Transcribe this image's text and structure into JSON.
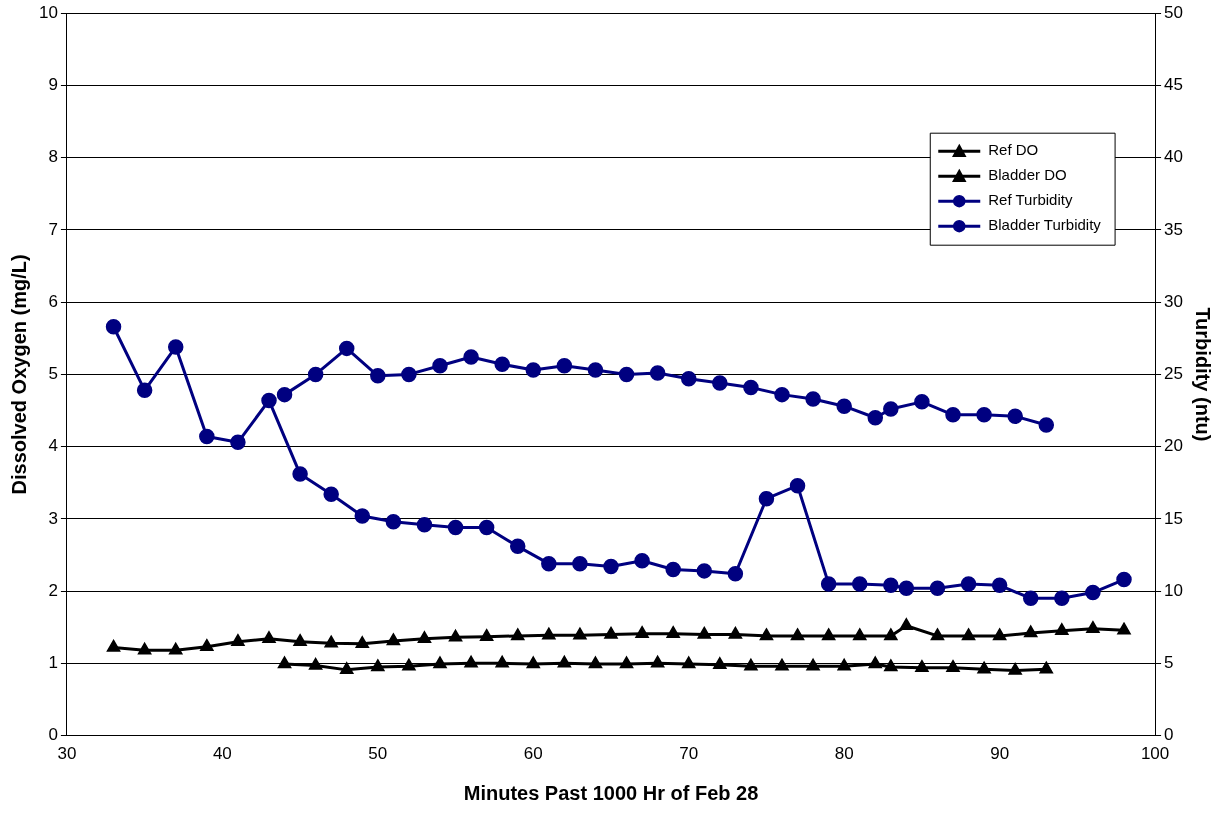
{
  "chart_data": {
    "type": "line",
    "xlabel": "Minutes Past 1000 Hr of Feb 28",
    "ylabel": "Dissolved Oxygen (mg/L)",
    "y2label": "Turbidity (ntu)",
    "xlim": [
      30,
      100
    ],
    "xticks": [
      30,
      40,
      50,
      60,
      70,
      80,
      90,
      100
    ],
    "ylim": [
      0,
      10
    ],
    "yticks": [
      0,
      1,
      2,
      3,
      4,
      5,
      6,
      7,
      8,
      9,
      10
    ],
    "y2lim": [
      0,
      50
    ],
    "y2ticks": [
      0,
      5,
      10,
      15,
      20,
      25,
      30,
      35,
      40,
      45,
      50
    ],
    "grid": "y",
    "legend": "top right",
    "line_style": "solid",
    "series": [
      {
        "name": "Ref DO",
        "color": "#000000",
        "marker": "triangle",
        "x": [
          33,
          35,
          37,
          39,
          41,
          43,
          45,
          47,
          49,
          51,
          53,
          55,
          57,
          59,
          61,
          63,
          65,
          67,
          69,
          71,
          73,
          75,
          77,
          79,
          81,
          83,
          84,
          86,
          88,
          90,
          92,
          94,
          96,
          98
        ],
        "values": [
          1.22,
          1.18,
          1.18,
          1.23,
          1.3,
          1.34,
          1.3,
          1.28,
          1.27,
          1.31,
          1.34,
          1.36,
          1.37,
          1.38,
          1.39,
          1.39,
          1.4,
          1.41,
          1.41,
          1.4,
          1.4,
          1.38,
          1.38,
          1.38,
          1.38,
          1.38,
          1.52,
          1.38,
          1.38,
          1.38,
          1.42,
          1.45,
          1.48,
          1.46
        ]
      },
      {
        "name": "Bladder DO",
        "color": "#000000",
        "marker": "triangle",
        "x": [
          44,
          46,
          48,
          50,
          52,
          54,
          56,
          58,
          60,
          62,
          64,
          66,
          68,
          70,
          72,
          74,
          76,
          78,
          80,
          82,
          83,
          85,
          87,
          89,
          91,
          93
        ],
        "values": [
          0.99,
          0.97,
          0.91,
          0.95,
          0.96,
          0.99,
          1.0,
          1.0,
          0.99,
          1.0,
          0.99,
          0.99,
          1.0,
          0.99,
          0.98,
          0.96,
          0.96,
          0.96,
          0.96,
          0.99,
          0.95,
          0.94,
          0.94,
          0.92,
          0.9,
          0.92
        ]
      },
      {
        "name": "Ref Turbidity",
        "color": "#000080",
        "marker": "circle",
        "axis": "y2",
        "x": [
          33,
          35,
          37,
          39,
          41,
          43,
          45,
          47,
          49,
          51,
          53,
          55,
          57,
          59,
          61,
          63,
          65,
          67,
          69,
          71,
          73,
          75,
          77,
          79,
          81,
          83,
          84,
          86,
          88,
          90,
          92,
          94,
          96,
          98
        ],
        "values": [
          28.3,
          23.9,
          26.9,
          20.7,
          20.3,
          23.2,
          18.1,
          16.7,
          15.2,
          14.8,
          14.6,
          14.4,
          14.4,
          13.1,
          11.9,
          11.9,
          11.7,
          12.1,
          11.5,
          11.4,
          11.2,
          16.4,
          17.3,
          10.5,
          10.5,
          10.4,
          10.2,
          10.2,
          10.5,
          10.4,
          9.5,
          9.5,
          9.9,
          10.8
        ]
      },
      {
        "name": "Bladder Turbidity",
        "color": "#000080",
        "marker": "circle",
        "axis": "y2",
        "x": [
          44,
          46,
          48,
          50,
          52,
          54,
          56,
          58,
          60,
          62,
          64,
          66,
          68,
          70,
          72,
          74,
          76,
          78,
          80,
          82,
          83,
          85,
          87,
          89,
          91,
          93
        ],
        "values": [
          23.6,
          25.0,
          26.8,
          24.9,
          25.0,
          25.6,
          26.2,
          25.7,
          25.3,
          25.6,
          25.3,
          25.0,
          25.1,
          24.7,
          24.4,
          24.1,
          23.6,
          23.3,
          22.8,
          22.0,
          22.6,
          23.1,
          22.2,
          22.2,
          22.1,
          21.5
        ]
      }
    ]
  }
}
